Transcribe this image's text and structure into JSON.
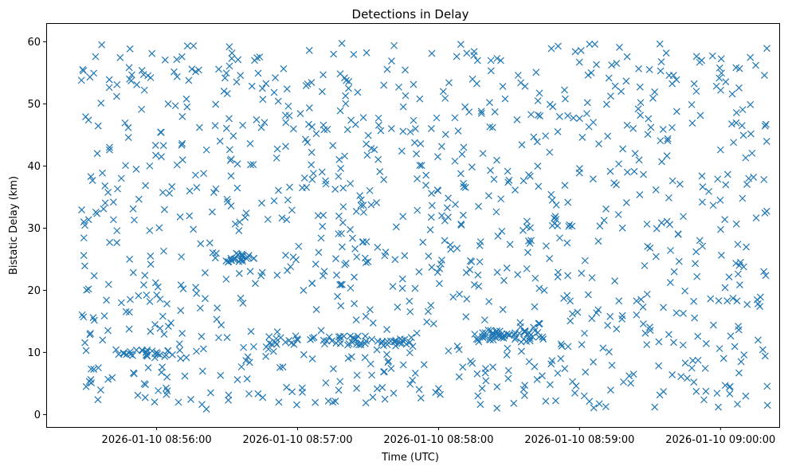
{
  "chart_data": {
    "type": "scatter",
    "title": "Detections in Delay",
    "xlabel": "Time (UTC)",
    "ylabel": "Bistatic Delay (km)",
    "x_axis": "time",
    "xlim": [
      "2026-01-10 08:55:13",
      "2026-01-10 09:00:25"
    ],
    "ylim": [
      -2,
      63
    ],
    "x_ticks": [
      {
        "value": "2026-01-10 08:56:00",
        "label": "2026-01-10 08:56:00"
      },
      {
        "value": "2026-01-10 08:57:00",
        "label": "2026-01-10 08:57:00"
      },
      {
        "value": "2026-01-10 08:58:00",
        "label": "2026-01-10 08:58:00"
      },
      {
        "value": "2026-01-10 08:59:00",
        "label": "2026-01-10 08:59:00"
      },
      {
        "value": "2026-01-10 09:00:00",
        "label": "2026-01-10 09:00:00"
      }
    ],
    "y_ticks": [
      0,
      10,
      20,
      30,
      40,
      50,
      60
    ],
    "marker": "x",
    "color": "#1f77b4",
    "grid": false,
    "legend": "none",
    "x_range": [
      "2026-01-10 08:55:28",
      "2026-01-10 09:00:20"
    ],
    "y_range": [
      0.7,
      59.9
    ],
    "point_count": 1200,
    "series": [
      {
        "points": [
          [
            "2026-01-10 08:55:28",
            53.8
          ],
          [
            "2026-01-10 08:55:29",
            31.0
          ],
          [
            "2026-01-10 08:55:29",
            25.6
          ],
          [
            "2026-01-10 08:55:30",
            4.5
          ],
          [
            "2026-01-10 08:55:30",
            10.3
          ],
          [
            "2026-01-10 08:55:31",
            47.4
          ],
          [
            "2026-01-10 08:55:31",
            20.2
          ],
          [
            "2026-01-10 08:55:32",
            38.3
          ],
          [
            "2026-01-10 08:55:33",
            15.6
          ],
          [
            "2026-01-10 08:55:34",
            57.6
          ],
          [
            "2026-01-10 08:55:35",
            2.4
          ],
          [
            "2026-01-10 08:55:37",
            12.0
          ],
          [
            "2026-01-10 08:55:38",
            36.8
          ],
          [
            "2026-01-10 08:55:40",
            27.7
          ],
          [
            "2026-01-10 08:55:43",
            51.2
          ],
          [
            "2026-01-10 08:55:45",
            18.0
          ],
          [
            "2026-01-10 08:55:46",
            9.8
          ],
          [
            "2026-01-10 08:55:48",
            44.6
          ],
          [
            "2026-01-10 08:55:50",
            33.1
          ],
          [
            "2026-01-10 08:55:52",
            3.1
          ],
          [
            "2026-01-10 08:55:55",
            22.4
          ],
          [
            "2026-01-10 08:55:58",
            58.1
          ],
          [
            "2026-01-10 08:56:00",
            10.0
          ],
          [
            "2026-01-10 08:56:02",
            41.5
          ],
          [
            "2026-01-10 08:56:03",
            26.3
          ],
          [
            "2026-01-10 08:56:05",
            14.2
          ],
          [
            "2026-01-10 08:56:08",
            49.7
          ],
          [
            "2026-01-10 08:56:10",
            31.8
          ],
          [
            "2026-01-10 08:56:12",
            6.2
          ],
          [
            "2026-01-10 08:56:15",
            55.6
          ],
          [
            "2026-01-10 08:56:17",
            19.5
          ],
          [
            "2026-01-10 08:56:20",
            38.8
          ],
          [
            "2026-01-10 08:56:23",
            3.5
          ],
          [
            "2026-01-10 08:56:25",
            25.2
          ],
          [
            "2026-01-10 08:56:27",
            44.0
          ],
          [
            "2026-01-10 08:56:30",
            12.4
          ],
          [
            "2026-01-10 08:56:32",
            57.3
          ],
          [
            "2026-01-10 08:56:35",
            29.6
          ],
          [
            "2026-01-10 08:56:38",
            8.7
          ],
          [
            "2026-01-10 08:56:40",
            40.2
          ],
          [
            "2026-01-10 08:56:42",
            21.1
          ],
          [
            "2026-01-10 08:56:45",
            52.5
          ],
          [
            "2026-01-10 08:56:48",
            11.5
          ],
          [
            "2026-01-10 08:56:50",
            34.4
          ],
          [
            "2026-01-10 08:56:52",
            2.0
          ],
          [
            "2026-01-10 08:56:55",
            47.0
          ],
          [
            "2026-01-10 08:56:57",
            23.8
          ],
          [
            "2026-01-10 08:57:00",
            12.0
          ],
          [
            "2026-01-10 08:57:02",
            36.5
          ],
          [
            "2026-01-10 08:57:05",
            58.6
          ],
          [
            "2026-01-10 08:57:08",
            16.9
          ],
          [
            "2026-01-10 08:57:10",
            28.4
          ],
          [
            "2026-01-10 08:57:12",
            5.1
          ],
          [
            "2026-01-10 08:57:15",
            43.3
          ],
          [
            "2026-01-10 08:57:17",
            19.0
          ],
          [
            "2026-01-10 08:57:20",
            54.2
          ],
          [
            "2026-01-10 08:57:23",
            9.3
          ],
          [
            "2026-01-10 08:57:25",
            32.7
          ],
          [
            "2026-01-10 08:57:28",
            47.8
          ],
          [
            "2026-01-10 08:57:30",
            24.6
          ],
          [
            "2026-01-10 08:57:32",
            2.8
          ],
          [
            "2026-01-10 08:57:35",
            39.1
          ],
          [
            "2026-01-10 08:57:38",
            13.7
          ],
          [
            "2026-01-10 08:57:40",
            56.9
          ],
          [
            "2026-01-10 08:57:42",
            30.2
          ],
          [
            "2026-01-10 08:57:45",
            8.0
          ],
          [
            "2026-01-10 08:57:48",
            45.5
          ],
          [
            "2026-01-10 08:57:50",
            20.3
          ],
          [
            "2026-01-10 08:57:52",
            50.8
          ],
          [
            "2026-01-10 08:57:55",
            14.9
          ],
          [
            "2026-01-10 08:57:57",
            35.6
          ],
          [
            "2026-01-10 08:58:00",
            4.2
          ],
          [
            "2026-01-10 08:58:02",
            52.0
          ],
          [
            "2026-01-10 08:58:05",
            27.3
          ],
          [
            "2026-01-10 08:58:08",
            11.0
          ],
          [
            "2026-01-10 08:58:10",
            41.9
          ],
          [
            "2026-01-10 08:58:12",
            18.6
          ],
          [
            "2026-01-10 08:58:15",
            57.8
          ],
          [
            "2026-01-10 08:58:17",
            33.5
          ],
          [
            "2026-01-10 08:58:20",
            7.4
          ],
          [
            "2026-01-10 08:58:23",
            46.2
          ],
          [
            "2026-01-10 08:58:25",
            22.9
          ],
          [
            "2026-01-10 08:58:27",
            13.0
          ],
          [
            "2026-01-10 08:58:30",
            37.7
          ],
          [
            "2026-01-10 08:58:32",
            1.8
          ],
          [
            "2026-01-10 08:58:35",
            53.4
          ],
          [
            "2026-01-10 08:58:38",
            26.1
          ],
          [
            "2026-01-10 08:58:40",
            12.5
          ],
          [
            "2026-01-10 08:58:42",
            43.9
          ],
          [
            "2026-01-10 08:58:45",
            20.0
          ],
          [
            "2026-01-10 08:58:48",
            58.9
          ],
          [
            "2026-01-10 08:58:50",
            31.4
          ],
          [
            "2026-01-10 08:58:52",
            9.0
          ],
          [
            "2026-01-10 08:58:55",
            48.1
          ],
          [
            "2026-01-10 08:58:57",
            16.2
          ],
          [
            "2026-01-10 08:59:00",
            39.6
          ],
          [
            "2026-01-10 08:59:02",
            3.0
          ],
          [
            "2026-01-10 08:59:05",
            55.0
          ],
          [
            "2026-01-10 08:59:08",
            27.9
          ],
          [
            "2026-01-10 08:59:10",
            10.7
          ],
          [
            "2026-01-10 08:59:12",
            44.8
          ],
          [
            "2026-01-10 08:59:15",
            21.5
          ],
          [
            "2026-01-10 08:59:17",
            59.1
          ],
          [
            "2026-01-10 08:59:20",
            34.1
          ],
          [
            "2026-01-10 08:59:23",
            6.5
          ],
          [
            "2026-01-10 08:59:25",
            49.2
          ],
          [
            "2026-01-10 08:59:27",
            17.3
          ],
          [
            "2026-01-10 08:59:30",
            26.8
          ],
          [
            "2026-01-10 08:59:32",
            1.2
          ],
          [
            "2026-01-10 08:59:35",
            40.7
          ],
          [
            "2026-01-10 08:59:38",
            12.9
          ],
          [
            "2026-01-10 08:59:40",
            54.6
          ],
          [
            "2026-01-10 08:59:42",
            29.0
          ],
          [
            "2026-01-10 08:59:45",
            8.3
          ],
          [
            "2026-01-10 08:59:48",
            46.9
          ],
          [
            "2026-01-10 08:59:50",
            22.2
          ],
          [
            "2026-01-10 08:59:52",
            57.0
          ],
          [
            "2026-01-10 08:59:55",
            35.9
          ],
          [
            "2026-01-10 08:59:57",
            14.4
          ],
          [
            "2026-01-10 09:00:00",
            42.6
          ],
          [
            "2026-01-10 09:00:02",
            4.7
          ],
          [
            "2026-01-10 09:00:05",
            51.6
          ],
          [
            "2026-01-10 09:00:08",
            24.0
          ],
          [
            "2026-01-10 09:00:10",
            9.6
          ],
          [
            "2026-01-10 09:00:12",
            38.0
          ],
          [
            "2026-01-10 09:00:15",
            56.2
          ],
          [
            "2026-01-10 09:00:17",
            18.9
          ],
          [
            "2026-01-10 09:00:20",
            1.5
          ]
        ]
      }
    ]
  }
}
